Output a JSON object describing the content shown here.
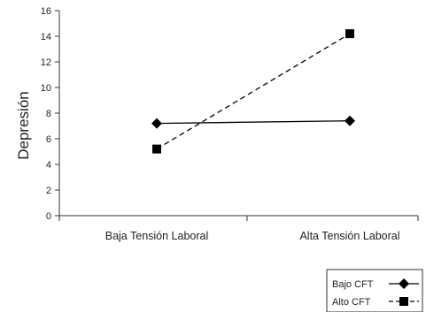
{
  "chart_data": {
    "type": "line",
    "ylabel": "Depresión",
    "xlabel": "",
    "categories": [
      "Baja Tensión Laboral",
      "Alta Tensión Laboral"
    ],
    "ylim": [
      0,
      16
    ],
    "yticks": [
      "0",
      "2",
      "4",
      "6",
      "8",
      "10",
      "12",
      "14",
      "16"
    ],
    "grid": false,
    "legend_position": "bottom-right",
    "series": [
      {
        "name": "Bajo CFT",
        "values": [
          7.2,
          7.4
        ],
        "marker": "diamond",
        "line_style": "solid",
        "color": "#000000"
      },
      {
        "name": "Alto CFT",
        "values": [
          5.2,
          14.2
        ],
        "marker": "square",
        "line_style": "dashed",
        "color": "#000000"
      }
    ]
  }
}
